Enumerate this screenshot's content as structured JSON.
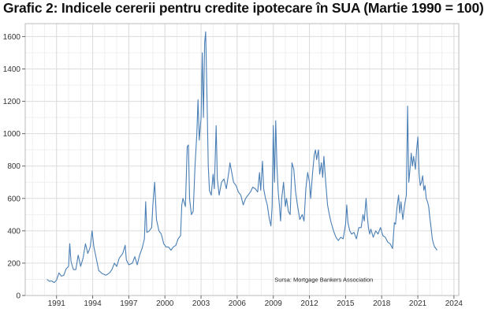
{
  "chart_data": {
    "type": "line",
    "title": "Grafic 2: Indicele cererii pentru credite ipotecare în SUA (Martie 1990 = 100)",
    "xlabel": "",
    "ylabel": "",
    "source": "Sursa: Mortgage Bankers Association",
    "xlim": [
      1988.4,
      2024.4
    ],
    "ylim": [
      0,
      1680
    ],
    "grid": true,
    "line_color": "#4a7fb5",
    "x_ticks": [
      {
        "value": 1991,
        "label": "1991"
      },
      {
        "value": 1994,
        "label": "1994"
      },
      {
        "value": 1997,
        "label": "1997"
      },
      {
        "value": 2000,
        "label": "2000"
      },
      {
        "value": 2003,
        "label": "2003"
      },
      {
        "value": 2006,
        "label": "2006"
      },
      {
        "value": 2009,
        "label": "2009"
      },
      {
        "value": 2012,
        "label": "2012"
      },
      {
        "value": 2015,
        "label": "2015"
      },
      {
        "value": 2018,
        "label": "2018"
      },
      {
        "value": 2021,
        "label": "2021"
      },
      {
        "value": 2024,
        "label": "2024"
      }
    ],
    "y_ticks": [
      {
        "value": 0,
        "label": "0"
      },
      {
        "value": 200,
        "label": "200"
      },
      {
        "value": 400,
        "label": "400"
      },
      {
        "value": 600,
        "label": "600"
      },
      {
        "value": 800,
        "label": "800"
      },
      {
        "value": 1000,
        "label": "1000"
      },
      {
        "value": 1200,
        "label": "1200"
      },
      {
        "value": 1400,
        "label": "1400"
      },
      {
        "value": 1600,
        "label": "1600"
      }
    ],
    "series": [
      {
        "name": "",
        "points": [
          [
            1990.2,
            100
          ],
          [
            1990.4,
            88
          ],
          [
            1990.6,
            90
          ],
          [
            1990.8,
            80
          ],
          [
            1991.0,
            95
          ],
          [
            1991.2,
            140
          ],
          [
            1991.4,
            120
          ],
          [
            1991.6,
            125
          ],
          [
            1991.8,
            165
          ],
          [
            1992.0,
            180
          ],
          [
            1992.1,
            320
          ],
          [
            1992.2,
            210
          ],
          [
            1992.4,
            160
          ],
          [
            1992.6,
            160
          ],
          [
            1992.8,
            250
          ],
          [
            1993.0,
            180
          ],
          [
            1993.2,
            230
          ],
          [
            1993.4,
            320
          ],
          [
            1993.6,
            260
          ],
          [
            1993.8,
            300
          ],
          [
            1993.95,
            400
          ],
          [
            1994.1,
            300
          ],
          [
            1994.3,
            230
          ],
          [
            1994.5,
            155
          ],
          [
            1994.8,
            135
          ],
          [
            1995.1,
            125
          ],
          [
            1995.4,
            140
          ],
          [
            1995.6,
            160
          ],
          [
            1995.8,
            200
          ],
          [
            1996.0,
            180
          ],
          [
            1996.2,
            230
          ],
          [
            1996.5,
            260
          ],
          [
            1996.7,
            310
          ],
          [
            1996.8,
            220
          ],
          [
            1997.0,
            190
          ],
          [
            1997.3,
            200
          ],
          [
            1997.5,
            240
          ],
          [
            1997.7,
            190
          ],
          [
            1997.9,
            250
          ],
          [
            1998.1,
            290
          ],
          [
            1998.3,
            350
          ],
          [
            1998.4,
            580
          ],
          [
            1998.5,
            390
          ],
          [
            1998.7,
            400
          ],
          [
            1998.9,
            420
          ],
          [
            1999.0,
            560
          ],
          [
            1999.15,
            700
          ],
          [
            1999.3,
            470
          ],
          [
            1999.5,
            400
          ],
          [
            1999.7,
            380
          ],
          [
            1999.9,
            320
          ],
          [
            2000.1,
            300
          ],
          [
            2000.3,
            300
          ],
          [
            2000.5,
            280
          ],
          [
            2000.7,
            300
          ],
          [
            2000.9,
            310
          ],
          [
            2001.1,
            350
          ],
          [
            2001.3,
            370
          ],
          [
            2001.4,
            560
          ],
          [
            2001.5,
            600
          ],
          [
            2001.7,
            550
          ],
          [
            2001.85,
            920
          ],
          [
            2001.95,
            930
          ],
          [
            2002.05,
            600
          ],
          [
            2002.2,
            500
          ],
          [
            2002.35,
            520
          ],
          [
            2002.5,
            800
          ],
          [
            2002.65,
            1000
          ],
          [
            2002.75,
            1210
          ],
          [
            2002.85,
            960
          ],
          [
            2003.0,
            1100
          ],
          [
            2003.1,
            1500
          ],
          [
            2003.2,
            1100
          ],
          [
            2003.3,
            1560
          ],
          [
            2003.38,
            1630
          ],
          [
            2003.5,
            1200
          ],
          [
            2003.6,
            800
          ],
          [
            2003.7,
            650
          ],
          [
            2003.85,
            620
          ],
          [
            2004.0,
            750
          ],
          [
            2004.1,
            660
          ],
          [
            2004.25,
            1050
          ],
          [
            2004.35,
            720
          ],
          [
            2004.5,
            620
          ],
          [
            2004.7,
            700
          ],
          [
            2004.9,
            720
          ],
          [
            2005.1,
            660
          ],
          [
            2005.3,
            760
          ],
          [
            2005.4,
            820
          ],
          [
            2005.55,
            760
          ],
          [
            2005.7,
            700
          ],
          [
            2005.9,
            680
          ],
          [
            2006.1,
            640
          ],
          [
            2006.3,
            620
          ],
          [
            2006.5,
            560
          ],
          [
            2006.7,
            600
          ],
          [
            2006.9,
            620
          ],
          [
            2007.1,
            640
          ],
          [
            2007.3,
            670
          ],
          [
            2007.5,
            660
          ],
          [
            2007.7,
            640
          ],
          [
            2007.85,
            760
          ],
          [
            2007.95,
            650
          ],
          [
            2008.1,
            830
          ],
          [
            2008.2,
            660
          ],
          [
            2008.35,
            600
          ],
          [
            2008.5,
            560
          ],
          [
            2008.65,
            480
          ],
          [
            2008.8,
            430
          ],
          [
            2008.9,
            550
          ],
          [
            2009.0,
            1050
          ],
          [
            2009.1,
            700
          ],
          [
            2009.2,
            1080
          ],
          [
            2009.3,
            800
          ],
          [
            2009.4,
            650
          ],
          [
            2009.5,
            560
          ],
          [
            2009.6,
            460
          ],
          [
            2009.7,
            600
          ],
          [
            2009.85,
            700
          ],
          [
            2010.0,
            550
          ],
          [
            2010.1,
            600
          ],
          [
            2010.25,
            520
          ],
          [
            2010.4,
            500
          ],
          [
            2010.55,
            820
          ],
          [
            2010.7,
            780
          ],
          [
            2010.85,
            640
          ],
          [
            2011.0,
            560
          ],
          [
            2011.2,
            470
          ],
          [
            2011.4,
            500
          ],
          [
            2011.55,
            460
          ],
          [
            2011.7,
            660
          ],
          [
            2011.85,
            760
          ],
          [
            2012.0,
            700
          ],
          [
            2012.1,
            600
          ],
          [
            2012.25,
            750
          ],
          [
            2012.4,
            870
          ],
          [
            2012.5,
            900
          ],
          [
            2012.6,
            840
          ],
          [
            2012.75,
            900
          ],
          [
            2012.85,
            750
          ],
          [
            2013.0,
            820
          ],
          [
            2013.1,
            730
          ],
          [
            2013.2,
            860
          ],
          [
            2013.35,
            700
          ],
          [
            2013.5,
            560
          ],
          [
            2013.65,
            500
          ],
          [
            2013.8,
            450
          ],
          [
            2014.0,
            400
          ],
          [
            2014.2,
            360
          ],
          [
            2014.4,
            340
          ],
          [
            2014.6,
            360
          ],
          [
            2014.8,
            350
          ],
          [
            2015.0,
            440
          ],
          [
            2015.1,
            560
          ],
          [
            2015.2,
            450
          ],
          [
            2015.35,
            400
          ],
          [
            2015.5,
            380
          ],
          [
            2015.7,
            390
          ],
          [
            2015.9,
            350
          ],
          [
            2016.1,
            420
          ],
          [
            2016.3,
            420
          ],
          [
            2016.45,
            500
          ],
          [
            2016.55,
            460
          ],
          [
            2016.7,
            600
          ],
          [
            2016.8,
            490
          ],
          [
            2016.9,
            420
          ],
          [
            2017.0,
            380
          ],
          [
            2017.1,
            410
          ],
          [
            2017.3,
            360
          ],
          [
            2017.5,
            400
          ],
          [
            2017.7,
            380
          ],
          [
            2017.9,
            420
          ],
          [
            2018.1,
            370
          ],
          [
            2018.3,
            360
          ],
          [
            2018.5,
            330
          ],
          [
            2018.7,
            320
          ],
          [
            2018.9,
            290
          ],
          [
            2019.05,
            450
          ],
          [
            2019.15,
            440
          ],
          [
            2019.25,
            530
          ],
          [
            2019.4,
            620
          ],
          [
            2019.5,
            510
          ],
          [
            2019.6,
            580
          ],
          [
            2019.75,
            470
          ],
          [
            2019.9,
            560
          ],
          [
            2020.05,
            620
          ],
          [
            2020.15,
            1170
          ],
          [
            2020.25,
            700
          ],
          [
            2020.35,
            780
          ],
          [
            2020.45,
            880
          ],
          [
            2020.55,
            800
          ],
          [
            2020.65,
            860
          ],
          [
            2020.8,
            780
          ],
          [
            2020.9,
            900
          ],
          [
            2021.0,
            980
          ],
          [
            2021.1,
            760
          ],
          [
            2021.2,
            680
          ],
          [
            2021.3,
            700
          ],
          [
            2021.4,
            740
          ],
          [
            2021.5,
            650
          ],
          [
            2021.6,
            680
          ],
          [
            2021.7,
            600
          ],
          [
            2021.8,
            580
          ],
          [
            2021.9,
            550
          ],
          [
            2022.0,
            480
          ],
          [
            2022.1,
            420
          ],
          [
            2022.2,
            350
          ],
          [
            2022.3,
            320
          ],
          [
            2022.4,
            300
          ],
          [
            2022.5,
            290
          ],
          [
            2022.6,
            280
          ]
        ]
      }
    ]
  }
}
